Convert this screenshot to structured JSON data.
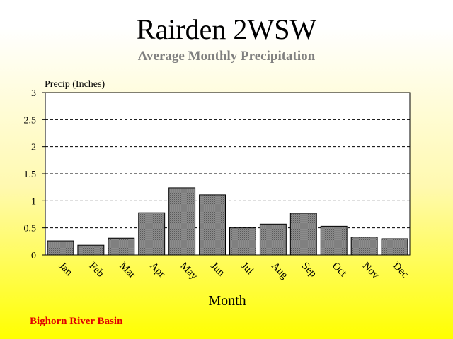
{
  "chart_data": {
    "type": "bar",
    "title": "Rairden 2WSW",
    "subtitle": "Average Monthly Precipitation",
    "ylabel": "Precip (Inches)",
    "xlabel": "Month",
    "categories": [
      "Jan",
      "Feb",
      "Mar",
      "Apr",
      "May",
      "Jun",
      "Jul",
      "Aug",
      "Sep",
      "Oct",
      "Nov",
      "Dec"
    ],
    "values": [
      0.26,
      0.18,
      0.31,
      0.78,
      1.24,
      1.11,
      0.5,
      0.57,
      0.77,
      0.53,
      0.33,
      0.3
    ],
    "ylim": [
      0,
      3
    ],
    "yticks": [
      "0",
      "0.5",
      "1",
      "1.5",
      "2",
      "2.5",
      "3"
    ],
    "grid": true,
    "bar_color": "#808080"
  },
  "footer": {
    "basin": "Bighorn River Basin"
  }
}
